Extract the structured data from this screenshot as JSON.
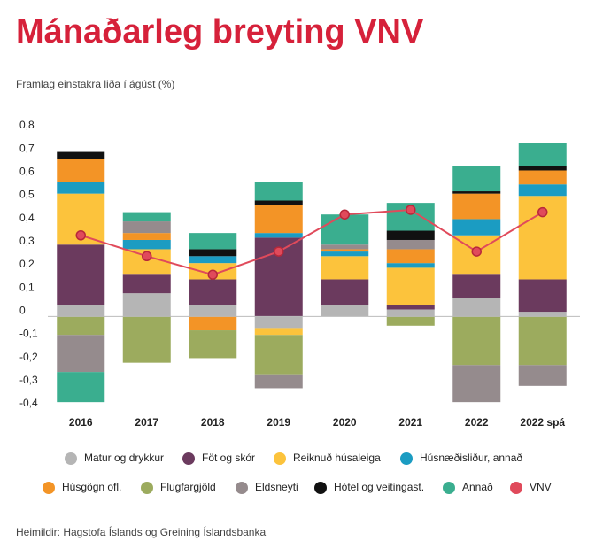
{
  "chart_data": {
    "type": "bar",
    "stacked": true,
    "title": "Mánaðarleg breyting VNV",
    "subtitle": "Framlag einstakra liða í ágúst (%)",
    "source": "Heimildir: Hagstofa Íslands og Greining Íslandsbanka",
    "categories": [
      "2016",
      "2017",
      "2018",
      "2019",
      "2020",
      "2021",
      "2022",
      "2022 spá"
    ],
    "ylim": [
      -0.4,
      0.8
    ],
    "yticks": [
      {
        "value": 0.8,
        "label": "0,8"
      },
      {
        "value": 0.7,
        "label": "0,7"
      },
      {
        "value": 0.6,
        "label": "0,6"
      },
      {
        "value": 0.5,
        "label": "0,5"
      },
      {
        "value": 0.4,
        "label": "0,4"
      },
      {
        "value": 0.3,
        "label": "0,3"
      },
      {
        "value": 0.2,
        "label": "0,2"
      },
      {
        "value": 0.1,
        "label": "0,1"
      },
      0,
      {
        "value": -0.1,
        "label": "-0,1"
      },
      {
        "value": -0.2,
        "label": "-0,2"
      },
      {
        "value": -0.3,
        "label": "-0,3"
      },
      {
        "value": -0.4,
        "label": "-0,4"
      }
    ],
    "series": [
      {
        "name": "Matur og drykkur",
        "color": "#b5b5b5",
        "values": [
          0.05,
          0.1,
          0.05,
          -0.05,
          0.05,
          0.03,
          0.08,
          0.02
        ]
      },
      {
        "name": "Föt og skór",
        "color": "#6b3a5e",
        "values": [
          0.26,
          0.08,
          0.11,
          0.34,
          0.11,
          0.02,
          0.1,
          0.14
        ]
      },
      {
        "name": "Reiknuð húsaleiga",
        "color": "#fcc33c",
        "values": [
          0.22,
          0.11,
          0.07,
          -0.03,
          0.1,
          0.16,
          0.17,
          0.36
        ]
      },
      {
        "name": "Húsnæðisliður, annað",
        "color": "#1b9cc2",
        "values": [
          0.05,
          0.04,
          0.03,
          0.02,
          0.02,
          0.02,
          0.07,
          0.05
        ]
      },
      {
        "name": "Húsgögn ofl.",
        "color": "#f39426",
        "values": [
          0.1,
          0.03,
          -0.06,
          0.12,
          0.01,
          0.06,
          0.11,
          0.06
        ]
      },
      {
        "name": "Flugfargjöld",
        "color": "#9cab5e",
        "values": [
          -0.08,
          -0.2,
          -0.12,
          -0.17,
          null,
          -0.04,
          -0.21,
          -0.21
        ]
      },
      {
        "name": "Eldsneyti",
        "color": "#958b8d",
        "values": [
          -0.16,
          0.05,
          null,
          -0.06,
          0.02,
          0.04,
          -0.16,
          -0.09
        ]
      },
      {
        "name": "Hótel og veitingast.",
        "color": "#111111",
        "values": [
          0.03,
          null,
          0.03,
          0.02,
          null,
          0.04,
          0.01,
          0.02
        ]
      },
      {
        "name": "Annað",
        "color": "#3aae8f",
        "values": [
          -0.13,
          0.04,
          0.07,
          0.08,
          0.13,
          0.12,
          0.11,
          0.1
        ]
      },
      {
        "name": "VNV",
        "color": "#e04a5b",
        "type": "line",
        "values": [
          0.35,
          0.26,
          0.18,
          0.28,
          0.44,
          0.46,
          0.28,
          0.45
        ]
      }
    ]
  }
}
